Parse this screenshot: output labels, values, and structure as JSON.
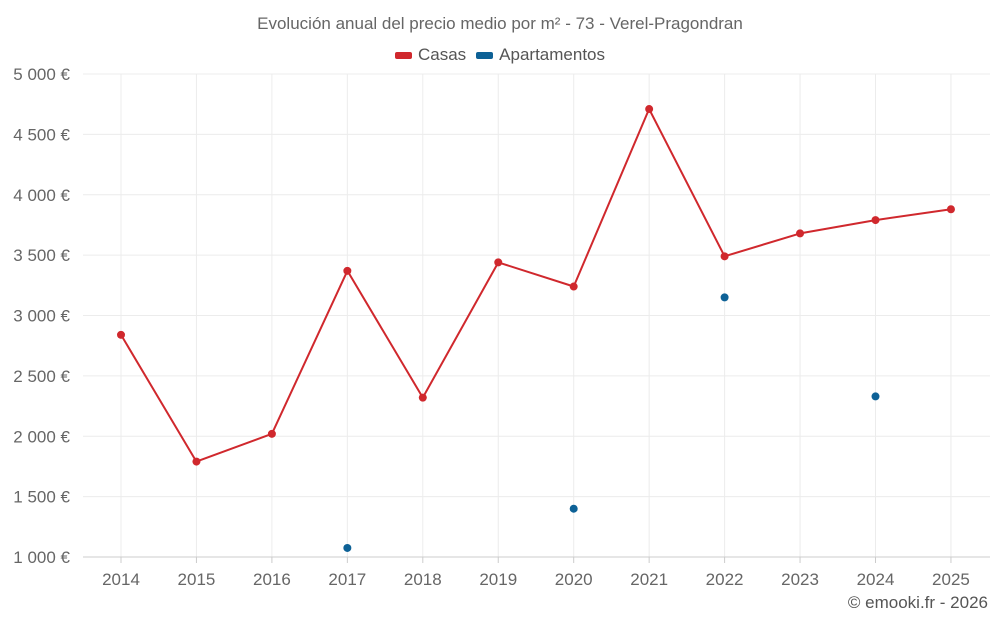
{
  "chart_data": {
    "type": "line",
    "title": "Evolución anual del precio medio por m² - 73 - Verel-Pragondran",
    "categories": [
      "2014",
      "2015",
      "2016",
      "2017",
      "2018",
      "2019",
      "2020",
      "2021",
      "2022",
      "2023",
      "2024",
      "2025"
    ],
    "series": [
      {
        "name": "Casas",
        "color": "#d0282d",
        "mode": "line",
        "values": [
          2840,
          1790,
          2020,
          3370,
          2320,
          3440,
          3240,
          4710,
          3490,
          3680,
          3790,
          3880
        ]
      },
      {
        "name": "Apartamentos",
        "color": "#0d6196",
        "mode": "markers",
        "values": [
          null,
          null,
          null,
          1075,
          null,
          null,
          1400,
          null,
          3150,
          null,
          2330,
          null
        ]
      }
    ],
    "yticks": [
      1000,
      1500,
      2000,
      2500,
      3000,
      3500,
      4000,
      4500,
      5000
    ],
    "ytick_labels": [
      "1 000 €",
      "1 500 €",
      "2 000 €",
      "2 500 €",
      "3 000 €",
      "3 500 €",
      "4 000 €",
      "4 500 €",
      "5 000 €"
    ],
    "ylim": [
      1000,
      5000
    ],
    "grid": true,
    "legend_position": "top-center",
    "xlabel": "",
    "ylabel": ""
  },
  "credit": "© emooki.fr - 2026"
}
